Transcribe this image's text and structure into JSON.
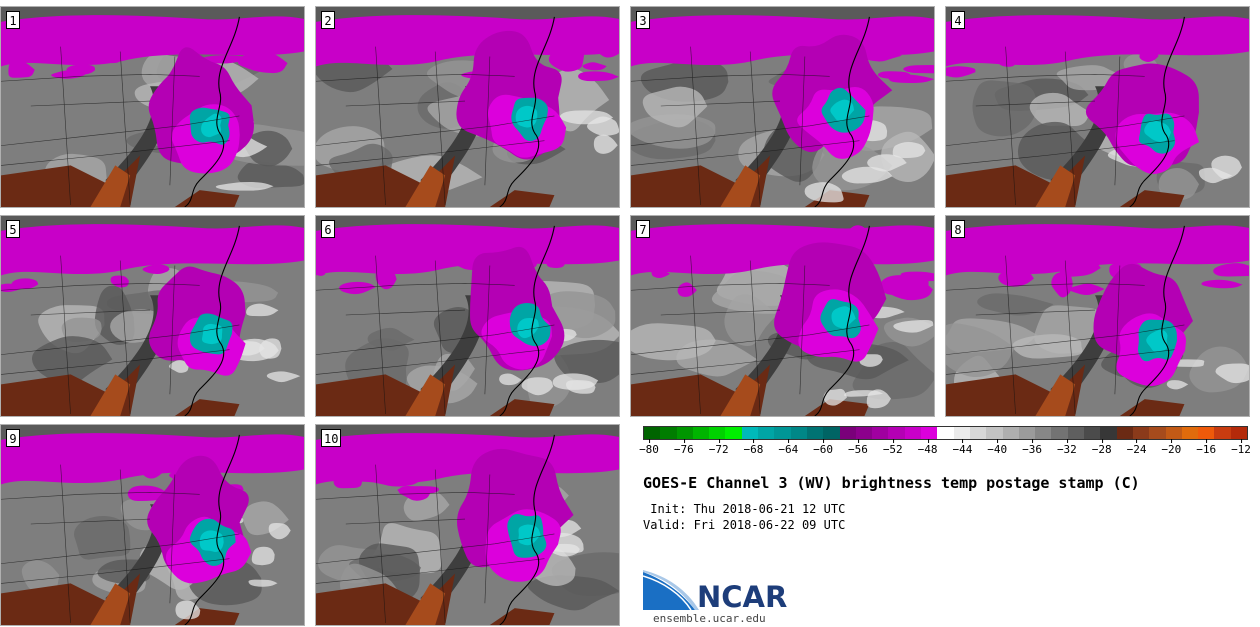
{
  "panels": [
    {
      "label": "1"
    },
    {
      "label": "2"
    },
    {
      "label": "3"
    },
    {
      "label": "4"
    },
    {
      "label": "5"
    },
    {
      "label": "6"
    },
    {
      "label": "7"
    },
    {
      "label": "8"
    },
    {
      "label": "9"
    },
    {
      "label": "10"
    }
  ],
  "colorbar": {
    "ticks": [
      "−80",
      "−76",
      "−72",
      "−68",
      "−64",
      "−60",
      "−56",
      "−52",
      "−48",
      "−44",
      "−40",
      "−36",
      "−32",
      "−28",
      "−24",
      "−20",
      "−16",
      "−12"
    ],
    "colors": [
      "#006400",
      "#007d00",
      "#009600",
      "#00b400",
      "#00d200",
      "#00ee00",
      "#00b9b9",
      "#00a5a5",
      "#009696",
      "#008787",
      "#007373",
      "#006464",
      "#7a007a",
      "#8c008c",
      "#a000a0",
      "#b400b4",
      "#c800c8",
      "#dc00dc",
      "#ffffff",
      "#ebebeb",
      "#d7d7d7",
      "#c3c3c3",
      "#afafaf",
      "#9b9b9b",
      "#878787",
      "#737373",
      "#5f5f5f",
      "#4b4b4b",
      "#373737",
      "#6b2a14",
      "#8b3a1a",
      "#a64b1c",
      "#c25a16",
      "#e06b0c",
      "#ee5a0a",
      "#c83c10",
      "#b42a0a"
    ],
    "colors_meaning": "magenta = cold cloud tops, teal = coldest, gray = mid, brown/orange = warm/dry"
  },
  "info": {
    "title": "GOES-E Channel 3 (WV) brightness temp postage stamp (C)",
    "init": " Init: Thu 2018-06-21 12 UTC",
    "valid": "Valid: Fri 2018-06-22 09 UTC"
  },
  "branding": {
    "logo_text": "NCAR",
    "url": "ensemble.ucar.edu"
  }
}
